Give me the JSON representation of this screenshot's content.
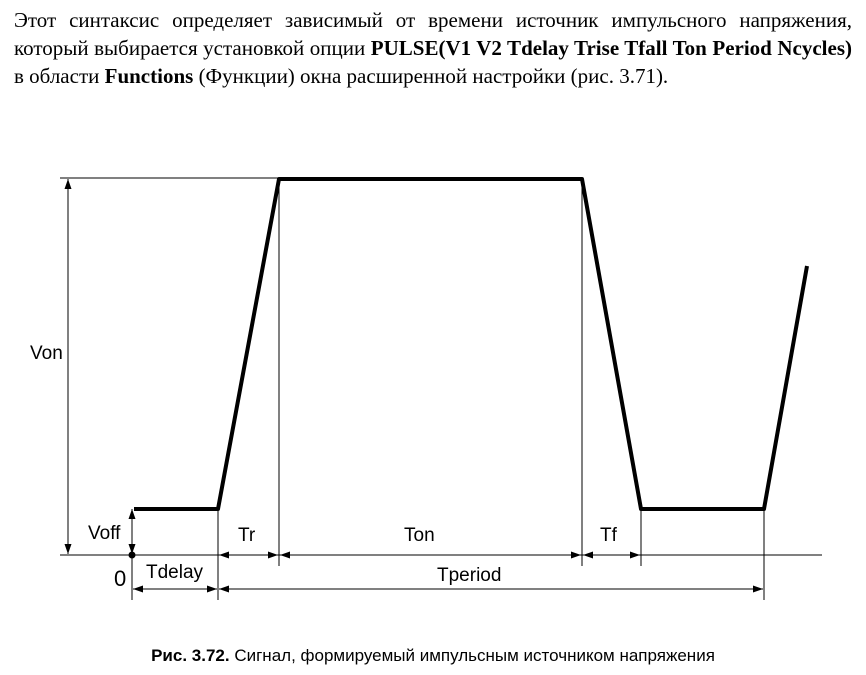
{
  "paragraph": {
    "t1": "Этот синтаксис определяет зависимый от времени источник импульсного на­пряжения, который выбирается установкой опции ",
    "b1": "PULSE(V1 V2 Tdelay Trise Tfall Ton Period Ncycles)",
    "t2": " в области ",
    "b2": "Functions",
    "t3": " (Функции) окна расши­ренной настройки (рис. 3.71)."
  },
  "figure": {
    "labels": {
      "von": "Von",
      "voff": "Voff",
      "zero": "0",
      "tdelay": "Tdelay",
      "tr": "Tr",
      "ton": "Ton",
      "tf": "Tf",
      "tperiod": "Tperiod"
    }
  },
  "caption": {
    "number": "Рис. 3.72.",
    "text": " Сигнал, формируемый импульсным источником напряжения"
  }
}
